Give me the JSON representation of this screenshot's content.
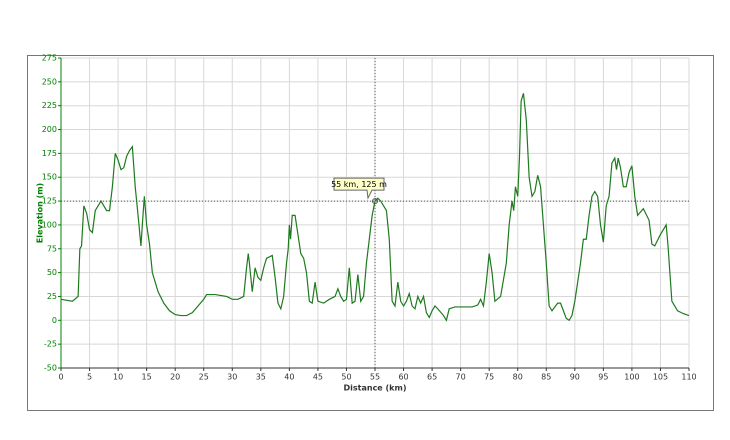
{
  "chart_data": {
    "type": "line",
    "x_label": "Distance (km)",
    "y_label": "Elevation (m)",
    "color": "#1e7a1e",
    "xlim": [
      0,
      110
    ],
    "xticks": [
      0,
      5,
      10,
      15,
      20,
      25,
      30,
      35,
      40,
      45,
      50,
      55,
      60,
      65,
      70,
      75,
      80,
      85,
      90,
      95,
      100,
      105,
      110
    ],
    "ylim": [
      -50,
      275
    ],
    "yticks": [
      -50,
      -25,
      0,
      25,
      50,
      75,
      100,
      125,
      150,
      175,
      200,
      225,
      250,
      275
    ],
    "grid": true,
    "annotation": {
      "text": "55 km, 125 m",
      "x": 55,
      "y": 125
    },
    "x": [
      0,
      1,
      2,
      3,
      3.3,
      3.6,
      4,
      4.5,
      5,
      5.5,
      6,
      7,
      8,
      8.5,
      9,
      9.5,
      10,
      10.5,
      11,
      11.5,
      12,
      12.5,
      13,
      13.5,
      14,
      14.3,
      14.6,
      15,
      15.5,
      16,
      17,
      18,
      19,
      20,
      21,
      22,
      23,
      24,
      25,
      25.5,
      27,
      29,
      30,
      31,
      32,
      32.5,
      32.8,
      33,
      33.5,
      34,
      34.5,
      35,
      35.5,
      36,
      37,
      37.5,
      38,
      38.5,
      39,
      39.5,
      39.8,
      40,
      40.2,
      40.5,
      41,
      41.5,
      42,
      42.5,
      43,
      43.5,
      44,
      44.5,
      45,
      46,
      47,
      48,
      48.5,
      49,
      49.5,
      50,
      50.5,
      51,
      51.5,
      52,
      52.5,
      53,
      53.5,
      54,
      54.5,
      55,
      55.5,
      56,
      57,
      57.5,
      58,
      58.5,
      59,
      59.5,
      60,
      60.5,
      61,
      61.5,
      62,
      62.5,
      63,
      63.5,
      64,
      64.5,
      65,
      65.5,
      66,
      67,
      67.5,
      68,
      69,
      70,
      71,
      72,
      73,
      73.5,
      74,
      74.5,
      75,
      75.5,
      76,
      77,
      78,
      78.5,
      79,
      79.3,
      79.6,
      80,
      80.3,
      80.6,
      81,
      81.5,
      82,
      82.5,
      83,
      83.5,
      84,
      84.5,
      85,
      85.5,
      86,
      87,
      87.5,
      88,
      88.5,
      89,
      89.5,
      90,
      91,
      91.5,
      92,
      92.5,
      93,
      93.5,
      94,
      94.5,
      95,
      95.5,
      96,
      96.5,
      97,
      97.3,
      97.6,
      98,
      98.5,
      99,
      99.5,
      100,
      100.5,
      101,
      102,
      103,
      103.5,
      104,
      105,
      106,
      106.3,
      107,
      108,
      109,
      110
    ],
    "values": [
      22,
      21,
      20,
      25,
      75,
      78,
      120,
      112,
      95,
      92,
      115,
      125,
      115,
      115,
      140,
      175,
      168,
      158,
      160,
      172,
      178,
      182,
      140,
      110,
      78,
      105,
      130,
      100,
      80,
      50,
      30,
      18,
      10,
      6,
      5,
      5,
      8,
      15,
      22,
      27,
      27,
      25,
      22,
      22,
      25,
      55,
      70,
      60,
      30,
      55,
      45,
      42,
      55,
      65,
      68,
      45,
      18,
      12,
      25,
      60,
      75,
      100,
      85,
      110,
      110,
      90,
      70,
      65,
      50,
      20,
      18,
      40,
      20,
      18,
      22,
      25,
      33,
      25,
      20,
      22,
      55,
      18,
      20,
      48,
      20,
      25,
      60,
      85,
      110,
      125,
      128,
      125,
      115,
      85,
      20,
      15,
      40,
      20,
      15,
      20,
      28,
      15,
      12,
      25,
      18,
      25,
      8,
      3,
      10,
      15,
      12,
      5,
      0,
      12,
      14,
      14,
      14,
      14,
      16,
      22,
      15,
      40,
      70,
      50,
      20,
      25,
      60,
      100,
      125,
      115,
      140,
      130,
      170,
      230,
      238,
      210,
      150,
      130,
      135,
      152,
      140,
      100,
      60,
      15,
      10,
      18,
      18,
      10,
      2,
      0,
      5,
      20,
      60,
      85,
      85,
      110,
      130,
      135,
      130,
      100,
      82,
      120,
      130,
      165,
      170,
      158,
      170,
      160,
      140,
      140,
      155,
      162,
      130,
      110,
      117,
      105,
      80,
      78,
      90,
      100,
      80,
      20,
      10,
      7,
      5
    ]
  }
}
